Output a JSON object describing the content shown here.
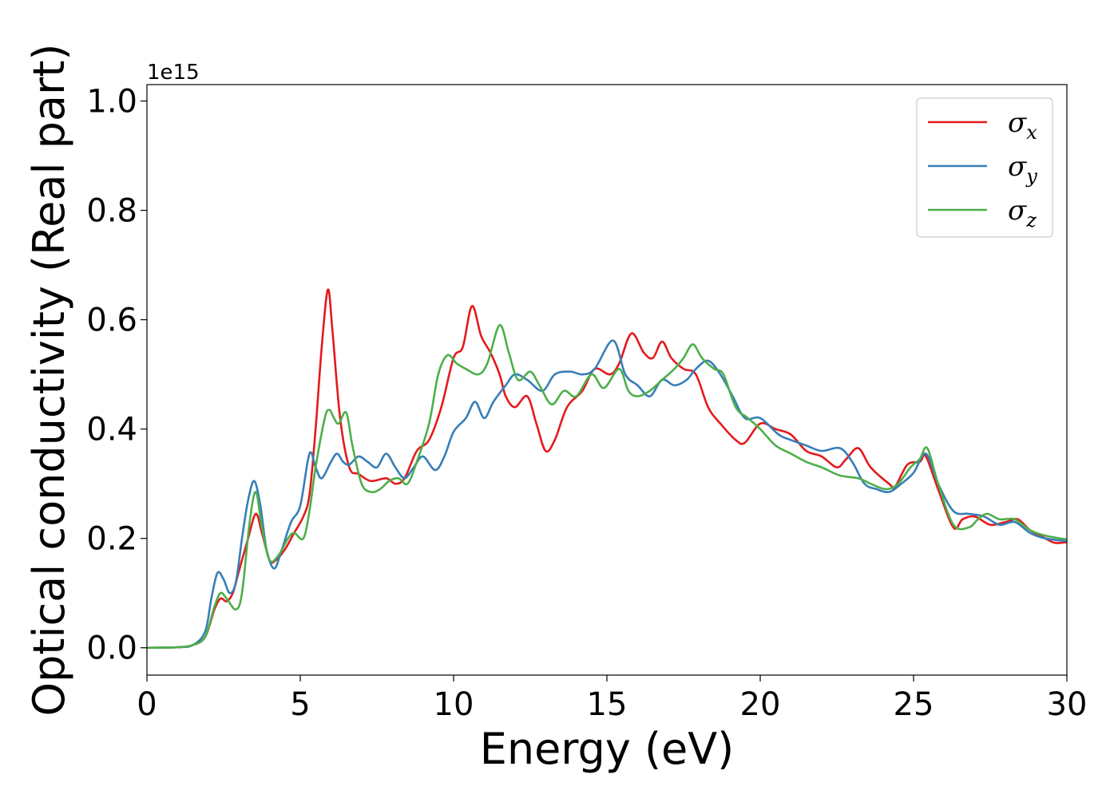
{
  "chart_data": {
    "type": "line",
    "xlabel": "Energy (eV)",
    "ylabel": "Optical conductivity (Real part)",
    "offset_text": "1e15",
    "xlim": [
      0,
      30
    ],
    "ylim": [
      -0.05,
      1.03
    ],
    "x_ticks": [
      0,
      5,
      10,
      15,
      20,
      25,
      30
    ],
    "y_ticks": [
      0.0,
      0.2,
      0.4,
      0.6,
      0.8,
      1.0
    ],
    "x_tick_labels": [
      "0",
      "5",
      "10",
      "15",
      "20",
      "25",
      "30"
    ],
    "y_tick_labels": [
      "0.0",
      "0.2",
      "0.4",
      "0.6",
      "0.8",
      "1.0"
    ],
    "grid": false,
    "legend_position": "top-right",
    "series": [
      {
        "name": "σx",
        "symbol": "σ",
        "sub": "x",
        "color": "#e41a1c",
        "points": [
          [
            0,
            0
          ],
          [
            1,
            0.001
          ],
          [
            1.5,
            0.005
          ],
          [
            1.9,
            0.02
          ],
          [
            2.2,
            0.07
          ],
          [
            2.4,
            0.09
          ],
          [
            2.6,
            0.085
          ],
          [
            2.8,
            0.1
          ],
          [
            3.0,
            0.14
          ],
          [
            3.3,
            0.2
          ],
          [
            3.55,
            0.245
          ],
          [
            3.75,
            0.21
          ],
          [
            4.0,
            0.16
          ],
          [
            4.2,
            0.16
          ],
          [
            4.5,
            0.18
          ],
          [
            4.8,
            0.21
          ],
          [
            5.1,
            0.24
          ],
          [
            5.3,
            0.28
          ],
          [
            5.5,
            0.4
          ],
          [
            5.7,
            0.55
          ],
          [
            5.9,
            0.655
          ],
          [
            6.05,
            0.58
          ],
          [
            6.3,
            0.42
          ],
          [
            6.6,
            0.33
          ],
          [
            6.9,
            0.318
          ],
          [
            7.3,
            0.305
          ],
          [
            7.8,
            0.31
          ],
          [
            8.1,
            0.3
          ],
          [
            8.4,
            0.31
          ],
          [
            8.8,
            0.36
          ],
          [
            9.2,
            0.38
          ],
          [
            9.6,
            0.44
          ],
          [
            10.0,
            0.53
          ],
          [
            10.3,
            0.55
          ],
          [
            10.6,
            0.625
          ],
          [
            10.9,
            0.57
          ],
          [
            11.2,
            0.54
          ],
          [
            11.5,
            0.5
          ],
          [
            11.7,
            0.46
          ],
          [
            12.0,
            0.44
          ],
          [
            12.4,
            0.46
          ],
          [
            12.7,
            0.41
          ],
          [
            13.0,
            0.36
          ],
          [
            13.3,
            0.38
          ],
          [
            13.7,
            0.44
          ],
          [
            14.2,
            0.47
          ],
          [
            14.6,
            0.51
          ],
          [
            15.1,
            0.5
          ],
          [
            15.4,
            0.52
          ],
          [
            15.8,
            0.575
          ],
          [
            16.2,
            0.54
          ],
          [
            16.5,
            0.53
          ],
          [
            16.8,
            0.56
          ],
          [
            17.1,
            0.53
          ],
          [
            17.5,
            0.51
          ],
          [
            17.9,
            0.5
          ],
          [
            18.3,
            0.44
          ],
          [
            18.7,
            0.41
          ],
          [
            19.2,
            0.38
          ],
          [
            19.5,
            0.375
          ],
          [
            20.0,
            0.41
          ],
          [
            20.5,
            0.4
          ],
          [
            21.0,
            0.39
          ],
          [
            21.5,
            0.36
          ],
          [
            22.0,
            0.35
          ],
          [
            22.5,
            0.33
          ],
          [
            22.8,
            0.345
          ],
          [
            23.2,
            0.365
          ],
          [
            23.6,
            0.33
          ],
          [
            24.2,
            0.3
          ],
          [
            24.4,
            0.295
          ],
          [
            24.8,
            0.335
          ],
          [
            25.2,
            0.34
          ],
          [
            25.4,
            0.35
          ],
          [
            25.8,
            0.29
          ],
          [
            26.3,
            0.22
          ],
          [
            26.6,
            0.235
          ],
          [
            27.0,
            0.24
          ],
          [
            27.5,
            0.225
          ],
          [
            28.0,
            0.23
          ],
          [
            28.4,
            0.235
          ],
          [
            28.8,
            0.215
          ],
          [
            29.3,
            0.2
          ],
          [
            29.6,
            0.192
          ],
          [
            30,
            0.193
          ]
        ]
      },
      {
        "name": "σy",
        "symbol": "σ",
        "sub": "y",
        "color": "#377eb8",
        "points": [
          [
            0,
            0
          ],
          [
            1,
            0.001
          ],
          [
            1.5,
            0.005
          ],
          [
            1.9,
            0.03
          ],
          [
            2.1,
            0.09
          ],
          [
            2.3,
            0.137
          ],
          [
            2.5,
            0.125
          ],
          [
            2.7,
            0.1
          ],
          [
            2.9,
            0.12
          ],
          [
            3.1,
            0.2
          ],
          [
            3.3,
            0.27
          ],
          [
            3.5,
            0.305
          ],
          [
            3.7,
            0.26
          ],
          [
            3.9,
            0.18
          ],
          [
            4.15,
            0.145
          ],
          [
            4.4,
            0.18
          ],
          [
            4.7,
            0.23
          ],
          [
            5.0,
            0.26
          ],
          [
            5.3,
            0.355
          ],
          [
            5.5,
            0.33
          ],
          [
            5.7,
            0.31
          ],
          [
            6.0,
            0.34
          ],
          [
            6.2,
            0.355
          ],
          [
            6.4,
            0.34
          ],
          [
            6.6,
            0.335
          ],
          [
            6.9,
            0.35
          ],
          [
            7.2,
            0.34
          ],
          [
            7.5,
            0.33
          ],
          [
            7.8,
            0.355
          ],
          [
            8.1,
            0.33
          ],
          [
            8.4,
            0.31
          ],
          [
            8.7,
            0.33
          ],
          [
            9.0,
            0.35
          ],
          [
            9.4,
            0.325
          ],
          [
            9.7,
            0.35
          ],
          [
            10.0,
            0.395
          ],
          [
            10.4,
            0.42
          ],
          [
            10.7,
            0.45
          ],
          [
            11.0,
            0.42
          ],
          [
            11.3,
            0.45
          ],
          [
            11.7,
            0.48
          ],
          [
            12.0,
            0.5
          ],
          [
            12.4,
            0.49
          ],
          [
            12.9,
            0.47
          ],
          [
            13.3,
            0.5
          ],
          [
            13.8,
            0.505
          ],
          [
            14.2,
            0.5
          ],
          [
            14.6,
            0.51
          ],
          [
            15.2,
            0.562
          ],
          [
            15.6,
            0.5
          ],
          [
            16.0,
            0.48
          ],
          [
            16.4,
            0.46
          ],
          [
            16.8,
            0.49
          ],
          [
            17.2,
            0.48
          ],
          [
            17.6,
            0.49
          ],
          [
            17.9,
            0.51
          ],
          [
            18.3,
            0.525
          ],
          [
            18.7,
            0.5
          ],
          [
            19.1,
            0.46
          ],
          [
            19.5,
            0.42
          ],
          [
            20.0,
            0.42
          ],
          [
            20.6,
            0.39
          ],
          [
            21.0,
            0.38
          ],
          [
            21.5,
            0.37
          ],
          [
            22.0,
            0.36
          ],
          [
            22.6,
            0.365
          ],
          [
            23.0,
            0.34
          ],
          [
            23.4,
            0.3
          ],
          [
            23.8,
            0.29
          ],
          [
            24.2,
            0.285
          ],
          [
            24.6,
            0.3
          ],
          [
            25.0,
            0.32
          ],
          [
            25.4,
            0.355
          ],
          [
            25.8,
            0.3
          ],
          [
            26.3,
            0.25
          ],
          [
            26.8,
            0.245
          ],
          [
            27.3,
            0.24
          ],
          [
            27.8,
            0.225
          ],
          [
            28.3,
            0.23
          ],
          [
            28.8,
            0.21
          ],
          [
            29.3,
            0.2
          ],
          [
            30,
            0.195
          ]
        ]
      },
      {
        "name": "σz",
        "symbol": "σ",
        "sub": "z",
        "color": "#4daf4a",
        "points": [
          [
            0,
            0
          ],
          [
            1,
            0.001
          ],
          [
            1.5,
            0.005
          ],
          [
            1.9,
            0.02
          ],
          [
            2.2,
            0.075
          ],
          [
            2.4,
            0.1
          ],
          [
            2.6,
            0.09
          ],
          [
            2.9,
            0.07
          ],
          [
            3.1,
            0.1
          ],
          [
            3.35,
            0.23
          ],
          [
            3.55,
            0.285
          ],
          [
            3.75,
            0.22
          ],
          [
            4.0,
            0.16
          ],
          [
            4.3,
            0.17
          ],
          [
            4.6,
            0.2
          ],
          [
            4.8,
            0.21
          ],
          [
            5.1,
            0.2
          ],
          [
            5.3,
            0.25
          ],
          [
            5.5,
            0.33
          ],
          [
            5.8,
            0.42
          ],
          [
            5.95,
            0.435
          ],
          [
            6.1,
            0.42
          ],
          [
            6.25,
            0.41
          ],
          [
            6.5,
            0.43
          ],
          [
            6.7,
            0.37
          ],
          [
            7.0,
            0.3
          ],
          [
            7.3,
            0.285
          ],
          [
            7.6,
            0.29
          ],
          [
            7.9,
            0.305
          ],
          [
            8.2,
            0.31
          ],
          [
            8.5,
            0.3
          ],
          [
            8.8,
            0.34
          ],
          [
            9.2,
            0.41
          ],
          [
            9.5,
            0.5
          ],
          [
            9.8,
            0.535
          ],
          [
            10.1,
            0.52
          ],
          [
            10.4,
            0.51
          ],
          [
            10.8,
            0.5
          ],
          [
            11.1,
            0.52
          ],
          [
            11.5,
            0.59
          ],
          [
            11.8,
            0.54
          ],
          [
            12.1,
            0.49
          ],
          [
            12.5,
            0.505
          ],
          [
            12.8,
            0.48
          ],
          [
            13.2,
            0.445
          ],
          [
            13.6,
            0.47
          ],
          [
            14.0,
            0.46
          ],
          [
            14.5,
            0.5
          ],
          [
            14.9,
            0.475
          ],
          [
            15.4,
            0.51
          ],
          [
            15.7,
            0.47
          ],
          [
            16.0,
            0.46
          ],
          [
            16.4,
            0.47
          ],
          [
            16.8,
            0.49
          ],
          [
            17.2,
            0.51
          ],
          [
            17.5,
            0.53
          ],
          [
            17.8,
            0.555
          ],
          [
            18.1,
            0.53
          ],
          [
            18.5,
            0.51
          ],
          [
            18.8,
            0.5
          ],
          [
            19.2,
            0.44
          ],
          [
            19.6,
            0.42
          ],
          [
            20.0,
            0.4
          ],
          [
            20.5,
            0.37
          ],
          [
            21.0,
            0.355
          ],
          [
            21.5,
            0.34
          ],
          [
            22.0,
            0.33
          ],
          [
            22.6,
            0.315
          ],
          [
            23.2,
            0.31
          ],
          [
            23.6,
            0.3
          ],
          [
            24.1,
            0.29
          ],
          [
            24.5,
            0.3
          ],
          [
            24.9,
            0.33
          ],
          [
            25.2,
            0.345
          ],
          [
            25.45,
            0.365
          ],
          [
            25.8,
            0.3
          ],
          [
            26.3,
            0.225
          ],
          [
            26.8,
            0.22
          ],
          [
            27.1,
            0.235
          ],
          [
            27.4,
            0.245
          ],
          [
            27.8,
            0.235
          ],
          [
            28.3,
            0.235
          ],
          [
            28.8,
            0.215
          ],
          [
            29.3,
            0.205
          ],
          [
            30,
            0.198
          ]
        ]
      }
    ]
  }
}
